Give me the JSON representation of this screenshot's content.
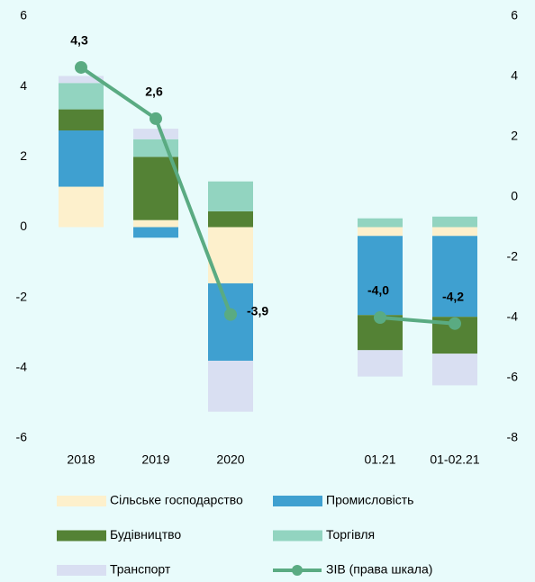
{
  "chart_data": {
    "type": "stacked_bar_line",
    "categories": [
      "2018",
      "2019",
      "2020",
      null,
      "01.21",
      "01-02.21"
    ],
    "series": [
      {
        "name": "Сільське господарство",
        "color": "#fdf0cc",
        "values": [
          1.15,
          0.2,
          -1.6,
          null,
          -0.25,
          -0.25
        ]
      },
      {
        "name": "Промисловість",
        "color": "#3fa0d0",
        "values": [
          1.6,
          -0.3,
          -2.2,
          null,
          -2.25,
          -2.3
        ]
      },
      {
        "name": "Будівництво",
        "color": "#548235",
        "values": [
          0.6,
          1.8,
          0.45,
          null,
          -1.0,
          -1.05
        ]
      },
      {
        "name": "Торгівля",
        "color": "#92d4c0",
        "values": [
          0.75,
          0.5,
          0.85,
          null,
          0.25,
          0.3
        ]
      },
      {
        "name": "Транспорт",
        "color": "#d9dff2",
        "values": [
          0.2,
          0.3,
          -1.45,
          null,
          -0.75,
          -0.9
        ]
      },
      {
        "name": "ЗІВ (права шкала)",
        "color": "#5aab82",
        "axis": "y2",
        "type": "line",
        "values": [
          4.3,
          2.6,
          -3.9,
          null,
          -4.0,
          -4.2
        ],
        "value_labels": [
          "4,3",
          "2,6",
          "-3,9",
          null,
          "-4,0",
          "-4,2"
        ]
      }
    ],
    "ylim": [
      -6,
      6
    ],
    "yticks": [
      -6,
      -4,
      -2,
      0,
      2,
      4,
      6
    ],
    "y2lim": [
      -8,
      6
    ],
    "y2ticks": [
      -8,
      -6,
      -4,
      -2,
      0,
      2,
      4,
      6
    ]
  }
}
